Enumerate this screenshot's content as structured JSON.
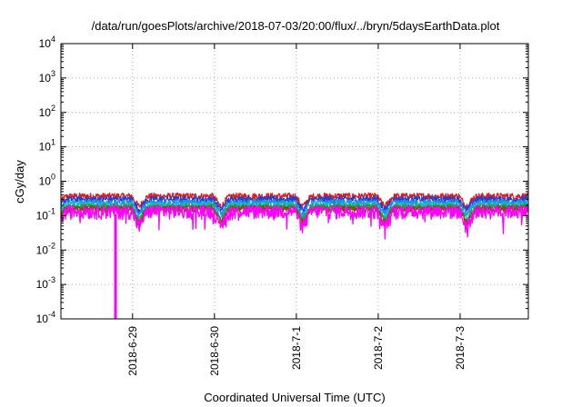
{
  "chart_data": {
    "type": "line",
    "title": "/data/run/goesPlots/archive/2018-07-03/20:00/flux/../bryn/5daysEarthData.plot",
    "xlabel": "Coordinated Universal Time (UTC)",
    "ylabel": "cGy/day",
    "yscale": "log",
    "xlim": [
      "2018-06-28T03:00",
      "2018-07-03T20:00"
    ],
    "ylim": [
      0.0001,
      10000
    ],
    "grid": true,
    "x_ticks": [
      "2018-6-29",
      "2018-6-30",
      "2018-7-1",
      "2018-7-2",
      "2018-7-3"
    ],
    "y_ticks": [
      {
        "base": "10",
        "exp": "4"
      },
      {
        "base": "10",
        "exp": "3"
      },
      {
        "base": "10",
        "exp": "2"
      },
      {
        "base": "10",
        "exp": "1"
      },
      {
        "base": "10",
        "exp": "0"
      },
      {
        "base": "10",
        "exp": "-1"
      },
      {
        "base": "10",
        "exp": "-2"
      },
      {
        "base": "10",
        "exp": "-3"
      },
      {
        "base": "10",
        "exp": "-4"
      }
    ],
    "series": [
      {
        "color": "#e41a1c",
        "level": 0.37,
        "dip": 0.6
      },
      {
        "color": "#1f3fd9",
        "level": 0.3,
        "dip": 0.62
      },
      {
        "color": "#1f8fe8",
        "level": 0.24,
        "dip": 0.65
      },
      {
        "color": "#00c8c8",
        "level": 0.2,
        "dip": 0.7
      },
      {
        "color": "#2aa02a",
        "level": 0.18,
        "dip": 0.72
      },
      {
        "color": "#8b4513",
        "level": 0.16,
        "dip": 0.75
      },
      {
        "color": "#ff00ff",
        "level": 0.14,
        "dip": 0.8
      }
    ],
    "spikes": [
      {
        "x": "2018-06-28T19:00",
        "y": 0.0001,
        "color": "#ff00ff"
      }
    ]
  }
}
